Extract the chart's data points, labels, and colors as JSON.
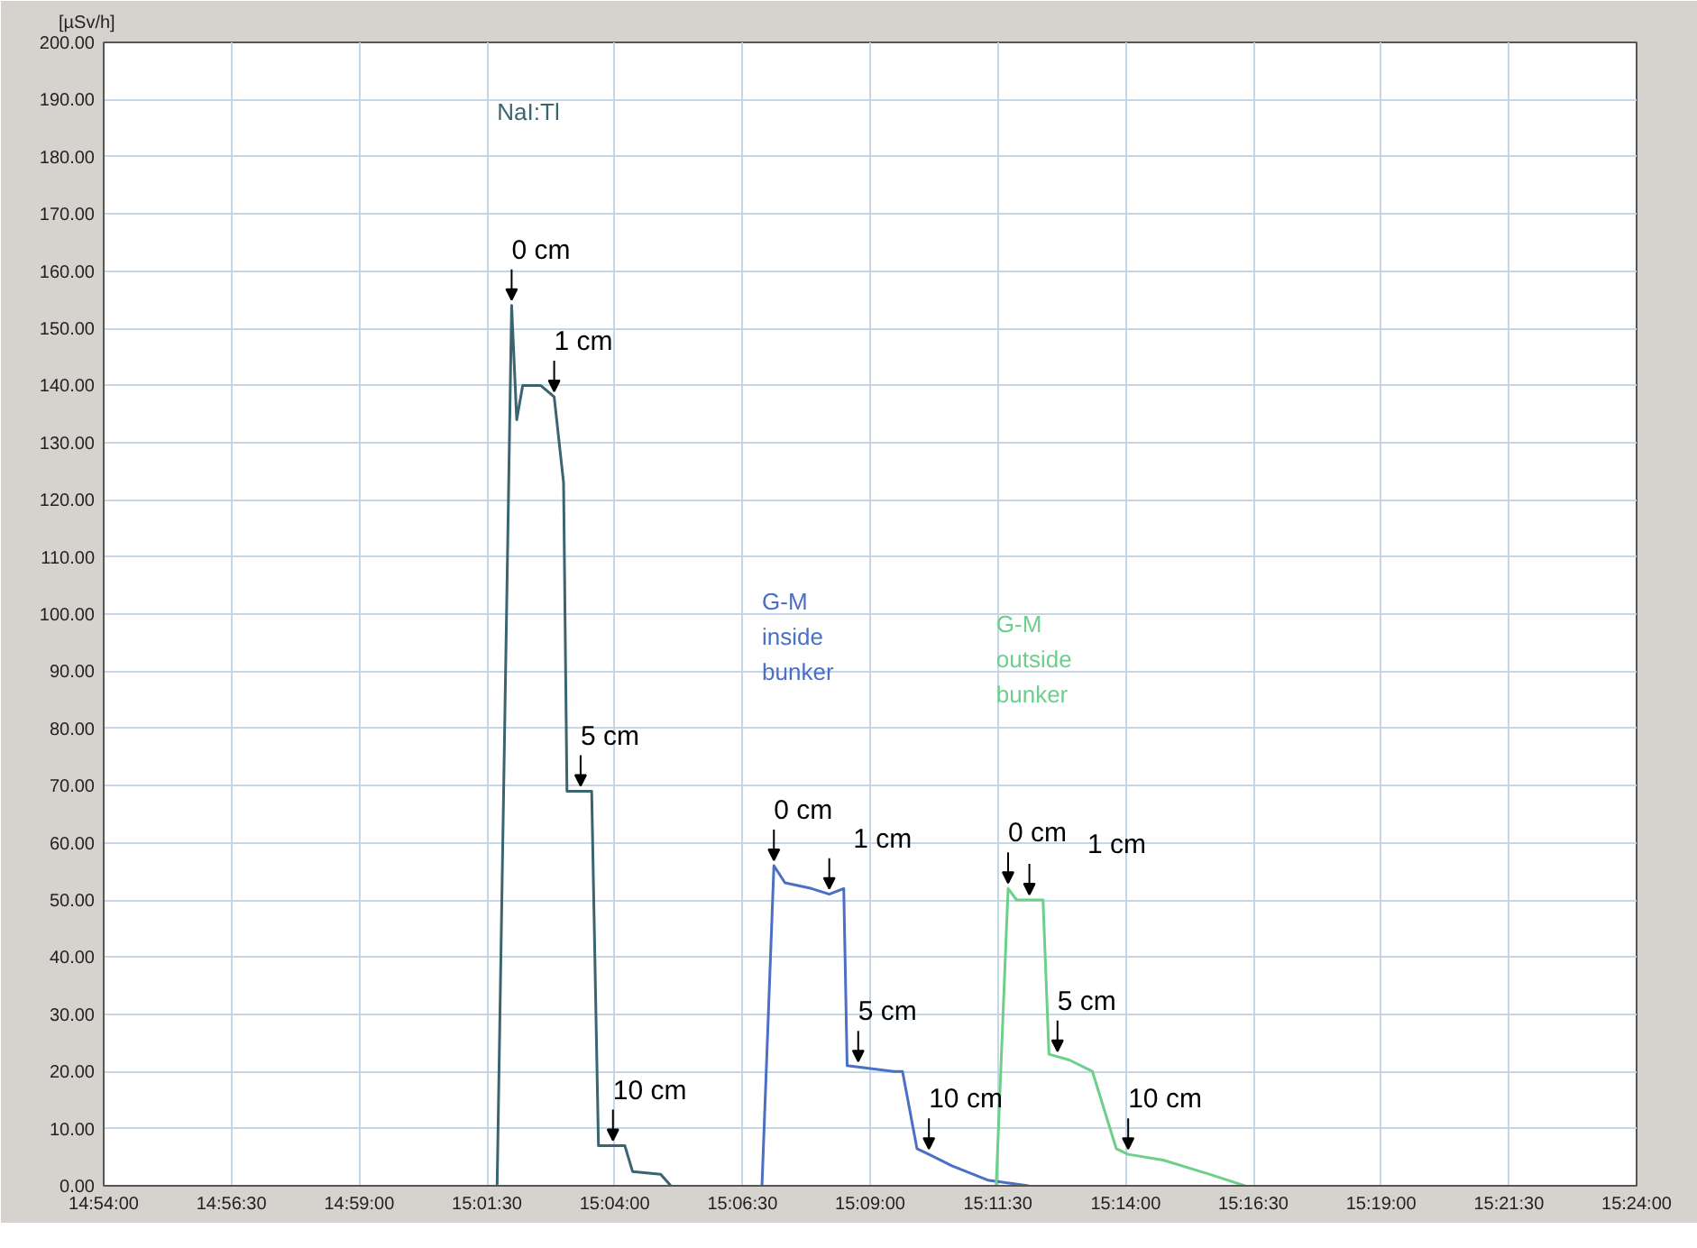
{
  "chart_data": {
    "type": "line",
    "ylabel": "[µSv/h]",
    "xlim": [
      14.9,
      15.4
    ],
    "xticks": [
      {
        "value": 14.9,
        "label": "14:54:00"
      },
      {
        "value": 14.941667,
        "label": "14:56:30"
      },
      {
        "value": 14.983333,
        "label": "14:59:00"
      },
      {
        "value": 15.025,
        "label": "15:01:30"
      },
      {
        "value": 15.066667,
        "label": "15:04:00"
      },
      {
        "value": 15.108333,
        "label": "15:06:30"
      },
      {
        "value": 15.15,
        "label": "15:09:00"
      },
      {
        "value": 15.191667,
        "label": "15:11:30"
      },
      {
        "value": 15.233333,
        "label": "15:14:00"
      },
      {
        "value": 15.275,
        "label": "15:16:30"
      },
      {
        "value": 15.316667,
        "label": "15:19:00"
      },
      {
        "value": 15.358333,
        "label": "15:21:30"
      },
      {
        "value": 15.4,
        "label": "15:24:00"
      }
    ],
    "ylim": [
      0,
      200
    ],
    "yticks": [
      {
        "value": 0,
        "label": "0.00"
      },
      {
        "value": 10,
        "label": "10.00"
      },
      {
        "value": 20,
        "label": "20.00"
      },
      {
        "value": 30,
        "label": "30.00"
      },
      {
        "value": 40,
        "label": "40.00"
      },
      {
        "value": 50,
        "label": "50.00"
      },
      {
        "value": 60,
        "label": "60.00"
      },
      {
        "value": 70,
        "label": "70.00"
      },
      {
        "value": 80,
        "label": "80.00"
      },
      {
        "value": 90,
        "label": "90.00"
      },
      {
        "value": 100,
        "label": "100.00"
      },
      {
        "value": 110,
        "label": "110.00"
      },
      {
        "value": 120,
        "label": "120.00"
      },
      {
        "value": 130,
        "label": "130.00"
      },
      {
        "value": 140,
        "label": "140.00"
      },
      {
        "value": 150,
        "label": "150.00"
      },
      {
        "value": 160,
        "label": "160.00"
      },
      {
        "value": 170,
        "label": "170.00"
      },
      {
        "value": 180,
        "label": "180.00"
      },
      {
        "value": 190,
        "label": "190.00"
      },
      {
        "value": 200,
        "label": "200.00"
      }
    ],
    "grid": true,
    "marker": "none",
    "line_style": "solid",
    "series": [
      {
        "name": "NaI:Tl",
        "color": "#3a6470",
        "x": [
          15.02833,
          15.03306,
          15.03472,
          15.03667,
          15.0425,
          15.04694,
          15.05,
          15.05111,
          15.05917,
          15.06139,
          15.07,
          15.0725,
          15.08167,
          15.085
        ],
        "values": [
          0,
          154,
          134,
          140,
          140,
          138,
          123,
          69,
          69,
          7,
          7,
          2.5,
          2,
          0
        ]
      },
      {
        "name": "G-M\ninside\nbunker",
        "color": "#4a6fc4",
        "x": [
          15.11472,
          15.11861,
          15.12222,
          15.13083,
          15.13667,
          15.14139,
          15.1425,
          15.15778,
          15.16056,
          15.16528,
          15.16917,
          15.17667,
          15.18833,
          15.20167
        ],
        "values": [
          0,
          56,
          53,
          52,
          51,
          52,
          21,
          20,
          20,
          6.5,
          5.5,
          3.5,
          1,
          0
        ]
      },
      {
        "name": "G-M\noutside\nbunker",
        "color": "#6ccf8a",
        "x": [
          15.19111,
          15.195,
          15.19778,
          15.20639,
          15.20833,
          15.215,
          15.2225,
          15.23028,
          15.23417,
          15.24556,
          15.26083,
          15.27222
        ],
        "values": [
          0,
          52,
          50,
          50,
          23,
          22,
          20,
          6.5,
          5.5,
          4.5,
          2,
          0
        ]
      }
    ],
    "annotations": [
      {
        "text": "0 cm",
        "x": 15.03306,
        "y": 154
      },
      {
        "text": "1 cm",
        "x": 15.04694,
        "y": 138
      },
      {
        "text": "5 cm",
        "x": 15.05556,
        "y": 69
      },
      {
        "text": "10 cm",
        "x": 15.06611,
        "y": 7
      },
      {
        "text": "0 cm",
        "x": 15.11861,
        "y": 56
      },
      {
        "text": "1 cm",
        "x": 15.13667,
        "y": 51
      },
      {
        "text": "5 cm",
        "x": 15.14611,
        "y": 20.8
      },
      {
        "text": "10 cm",
        "x": 15.16917,
        "y": 5.5
      },
      {
        "text": "0 cm",
        "x": 15.195,
        "y": 52
      },
      {
        "text": "1 cm",
        "x": 15.20194,
        "y": 50
      },
      {
        "text": "5 cm",
        "x": 15.21111,
        "y": 22.6
      },
      {
        "text": "10 cm",
        "x": 15.23417,
        "y": 5.5
      }
    ]
  }
}
